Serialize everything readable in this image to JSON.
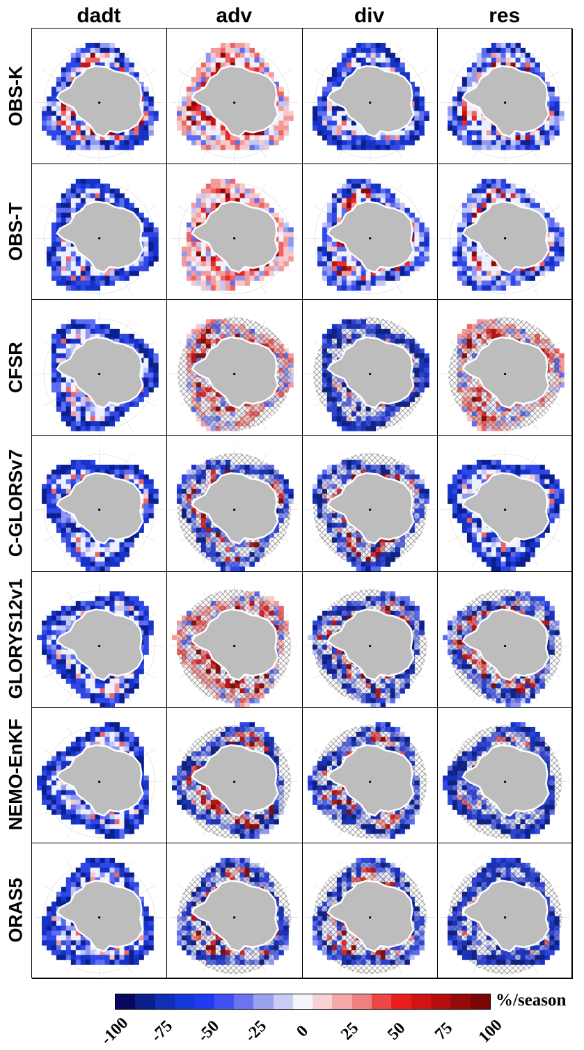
{
  "figure": {
    "columns": [
      "dadt",
      "adv",
      "div",
      "res"
    ],
    "rows": [
      "OBS-K",
      "OBS-T",
      "CFSR",
      "C-GLORSv7",
      "GLORYS12v1",
      "NEMO-EnKF",
      "ORAS5"
    ]
  },
  "colorbar": {
    "unit": "%/season",
    "ticks": [
      "-100",
      "-75",
      "-50",
      "-25",
      "0",
      "25",
      "50",
      "75",
      "100"
    ],
    "colors": [
      "#08085e",
      "#0a1f8a",
      "#0f2fb5",
      "#1538d8",
      "#1f3af0",
      "#4152f2",
      "#6a74ee",
      "#9aa2f0",
      "#c9cdf5",
      "#f4f4fb",
      "#f8d2d2",
      "#f5a8a8",
      "#f07f7f",
      "#ec4646",
      "#e81e1e",
      "#d01414",
      "#b40e0e",
      "#970a0a",
      "#7a0505"
    ]
  },
  "panels": {
    "land_color": "#bdbdbd",
    "hatched": {
      "OBS-K": [
        false,
        false,
        false,
        false
      ],
      "OBS-T": [
        false,
        false,
        false,
        false
      ],
      "CFSR": [
        false,
        true,
        true,
        true
      ],
      "C-GLORSv7": [
        false,
        true,
        true,
        false
      ],
      "GLORYS12v1": [
        false,
        true,
        true,
        true
      ],
      "NEMO-EnKF": [
        false,
        true,
        true,
        true
      ],
      "ORAS5": [
        false,
        true,
        true,
        true
      ]
    },
    "dominant_sign": {
      "OBS-K": [
        "mixed",
        "positive",
        "negative",
        "mixed"
      ],
      "OBS-T": [
        "negative",
        "positive",
        "mixed",
        "mixed"
      ],
      "CFSR": [
        "negative",
        "positive",
        "negative",
        "positive"
      ],
      "C-GLORSv7": [
        "negative",
        "mixed",
        "mixed",
        "negative"
      ],
      "GLORYS12v1": [
        "negative",
        "positive",
        "mixed",
        "mixed"
      ],
      "NEMO-EnKF": [
        "negative",
        "mixed",
        "mixed",
        "negative"
      ],
      "ORAS5": [
        "negative",
        "mixed",
        "mixed",
        "negative"
      ]
    }
  }
}
